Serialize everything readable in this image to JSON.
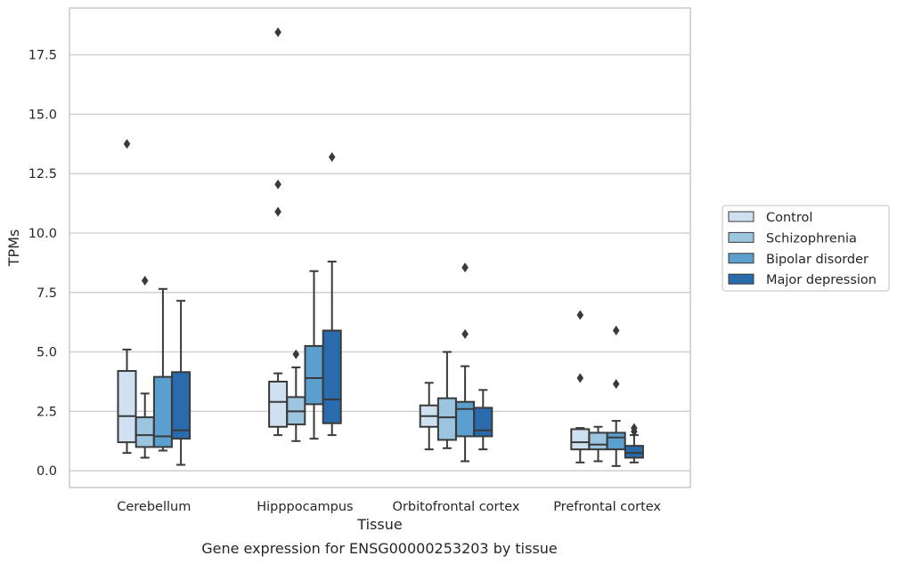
{
  "chart_data": {
    "type": "box",
    "xlabel": "Tissue",
    "ylabel": "TPMs",
    "caption": "Gene expression for ENSG00000253203 by tissue",
    "categories": [
      "Cerebellum",
      "Hipppocampus",
      "Orbitofrontal cortex",
      "Prefrontal cortex"
    ],
    "ylim": [
      -0.7,
      19.4
    ],
    "yticks": [
      0.0,
      2.5,
      5.0,
      7.5,
      10.0,
      12.5,
      15.0,
      17.5
    ],
    "ytick_labels": [
      "0.0",
      "2.5",
      "5.0",
      "7.5",
      "10.0",
      "12.5",
      "15.0",
      "17.5"
    ],
    "grid": "horizontal",
    "legend_position": "right",
    "series": [
      {
        "name": "Control",
        "color": "#cfe0f1",
        "boxes": [
          {
            "whislo": 0.75,
            "q1": 1.2,
            "med": 2.3,
            "q3": 4.2,
            "whishi": 5.1,
            "fliers": [
              13.75
            ]
          },
          {
            "whislo": 1.5,
            "q1": 1.85,
            "med": 2.9,
            "q3": 3.75,
            "whishi": 4.1,
            "fliers": [
              10.9,
              12.05,
              18.45
            ]
          },
          {
            "whislo": 0.9,
            "q1": 1.85,
            "med": 2.3,
            "q3": 2.75,
            "whishi": 3.7,
            "fliers": []
          },
          {
            "whislo": 0.35,
            "q1": 0.9,
            "med": 1.2,
            "q3": 1.75,
            "whishi": 1.8,
            "fliers": [
              3.9,
              6.55
            ]
          }
        ]
      },
      {
        "name": "Schizophrenia",
        "color": "#9cc5df",
        "boxes": [
          {
            "whislo": 0.55,
            "q1": 1.0,
            "med": 1.5,
            "q3": 2.25,
            "whishi": 3.25,
            "fliers": [
              8.0
            ]
          },
          {
            "whislo": 1.25,
            "q1": 1.95,
            "med": 2.5,
            "q3": 3.1,
            "whishi": 4.35,
            "fliers": [
              4.9
            ]
          },
          {
            "whislo": 0.95,
            "q1": 1.3,
            "med": 2.25,
            "q3": 3.05,
            "whishi": 5.0,
            "fliers": []
          },
          {
            "whislo": 0.4,
            "q1": 0.9,
            "med": 1.1,
            "q3": 1.6,
            "whishi": 1.85,
            "fliers": []
          }
        ]
      },
      {
        "name": "Bipolar disorder",
        "color": "#5a9fcf",
        "boxes": [
          {
            "whislo": 0.85,
            "q1": 1.0,
            "med": 1.45,
            "q3": 3.95,
            "whishi": 7.65,
            "fliers": []
          },
          {
            "whislo": 1.35,
            "q1": 2.8,
            "med": 3.9,
            "q3": 5.25,
            "whishi": 8.4,
            "fliers": []
          },
          {
            "whislo": 0.4,
            "q1": 1.45,
            "med": 2.6,
            "q3": 2.9,
            "whishi": 4.4,
            "fliers": [
              5.75,
              8.55
            ]
          },
          {
            "whislo": 0.2,
            "q1": 0.9,
            "med": 1.4,
            "q3": 1.6,
            "whishi": 2.1,
            "fliers": [
              3.65,
              5.9
            ]
          }
        ]
      },
      {
        "name": "Major depression",
        "color": "#2a6bad",
        "boxes": [
          {
            "whislo": 0.25,
            "q1": 1.35,
            "med": 1.7,
            "q3": 4.15,
            "whishi": 7.15,
            "fliers": []
          },
          {
            "whislo": 1.5,
            "q1": 2.0,
            "med": 3.0,
            "q3": 5.9,
            "whishi": 8.8,
            "fliers": [
              13.2
            ]
          },
          {
            "whislo": 0.9,
            "q1": 1.45,
            "med": 1.7,
            "q3": 2.65,
            "whishi": 3.4,
            "fliers": []
          },
          {
            "whislo": 0.35,
            "q1": 0.55,
            "med": 0.75,
            "q3": 1.05,
            "whishi": 1.5,
            "fliers": [
              1.65,
              1.8
            ]
          }
        ]
      }
    ]
  },
  "colors": {
    "edge": "#3a3a3a",
    "grid": "#cccccc",
    "spine": "#c9c9c9",
    "text": "#262626"
  }
}
